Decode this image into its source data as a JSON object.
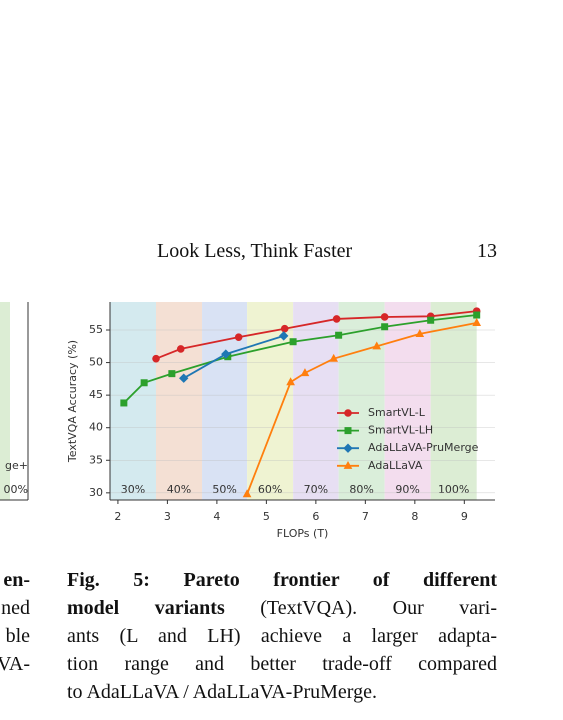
{
  "header": {
    "title": "Look Less, Think Faster",
    "page": "13"
  },
  "chart_data": {
    "type": "line",
    "xlabel": "FLOPs (T)",
    "ylabel": "TextVQA Accuracy (%)",
    "xlim": [
      1.84,
      9.62
    ],
    "ylim": [
      28.9,
      59.3
    ],
    "xticks": [
      2,
      3,
      4,
      5,
      6,
      7,
      8,
      9
    ],
    "yticks": [
      30,
      35,
      40,
      45,
      50,
      55
    ],
    "grid": true,
    "legend": "lower right",
    "bands": [
      {
        "label": "30%",
        "range": [
          1.84,
          2.77
        ],
        "color": "#d4eaef"
      },
      {
        "label": "40%",
        "range": [
          2.77,
          3.7
        ],
        "color": "#f4e0d4"
      },
      {
        "label": "50%",
        "range": [
          3.7,
          4.61
        ],
        "color": "#d9e2f4"
      },
      {
        "label": "60%",
        "range": [
          4.61,
          5.54
        ],
        "color": "#eff3d2"
      },
      {
        "label": "70%",
        "range": [
          5.54,
          6.46
        ],
        "color": "#e7dff3"
      },
      {
        "label": "80%",
        "range": [
          6.46,
          7.39
        ],
        "color": "#daeeda"
      },
      {
        "label": "90%",
        "range": [
          7.39,
          8.32
        ],
        "color": "#f3ddee"
      },
      {
        "label": "100%",
        "range": [
          8.32,
          9.25
        ],
        "color": "#dcedd4"
      }
    ],
    "series": [
      {
        "name": "SmartVL-L",
        "color": "#d62728",
        "marker": "circle",
        "x": [
          2.77,
          3.27,
          4.44,
          5.37,
          6.42,
          7.39,
          8.32,
          9.25
        ],
        "values": [
          50.6,
          52.1,
          53.9,
          55.2,
          56.7,
          57.0,
          57.1,
          57.9
        ]
      },
      {
        "name": "SmartVL-LH",
        "color": "#2ca02c",
        "marker": "square",
        "x": [
          2.12,
          2.53,
          3.09,
          4.22,
          5.54,
          6.46,
          7.39,
          8.32,
          9.25
        ],
        "values": [
          43.8,
          46.9,
          48.3,
          50.9,
          53.2,
          54.2,
          55.5,
          56.5,
          57.3
        ]
      },
      {
        "name": "AdaLLaVA-PruMerge",
        "color": "#1f77b4",
        "marker": "diamond",
        "x": [
          3.33,
          4.18,
          5.35
        ],
        "values": [
          47.6,
          51.3,
          54.1
        ]
      },
      {
        "name": "AdaLLaVA",
        "color": "#ff7f0e",
        "marker": "triangle",
        "x": [
          4.61,
          5.49,
          5.78,
          6.36,
          7.23,
          8.1,
          9.25
        ],
        "values": [
          29.8,
          47.0,
          48.4,
          50.6,
          52.5,
          54.4,
          56.1
        ]
      }
    ]
  },
  "left_fragment": {
    "chart_texts": [
      "ge+",
      "00%"
    ],
    "caption": [
      {
        "text": "en-",
        "bold": true
      },
      {
        "text": "ned",
        "bold": false
      },
      {
        "text": "ble",
        "bold": false
      },
      {
        "text": "VA-",
        "bold": false
      }
    ]
  },
  "caption": {
    "lines": [
      [
        {
          "text": "Fig. 5: Pareto frontier of different",
          "bold": true
        }
      ],
      [
        {
          "text": "model variants",
          "bold": true
        },
        {
          "text": " (TextVQA). Our vari-",
          "bold": false
        }
      ],
      [
        {
          "text": "ants (L and LH) achieve a larger adapta-",
          "bold": false
        }
      ],
      [
        {
          "text": "tion range and better trade-off compared",
          "bold": false
        }
      ],
      [
        {
          "text": "to AdaLLaVA / AdaLLaVA-PruMerge.",
          "bold": false
        }
      ]
    ]
  }
}
